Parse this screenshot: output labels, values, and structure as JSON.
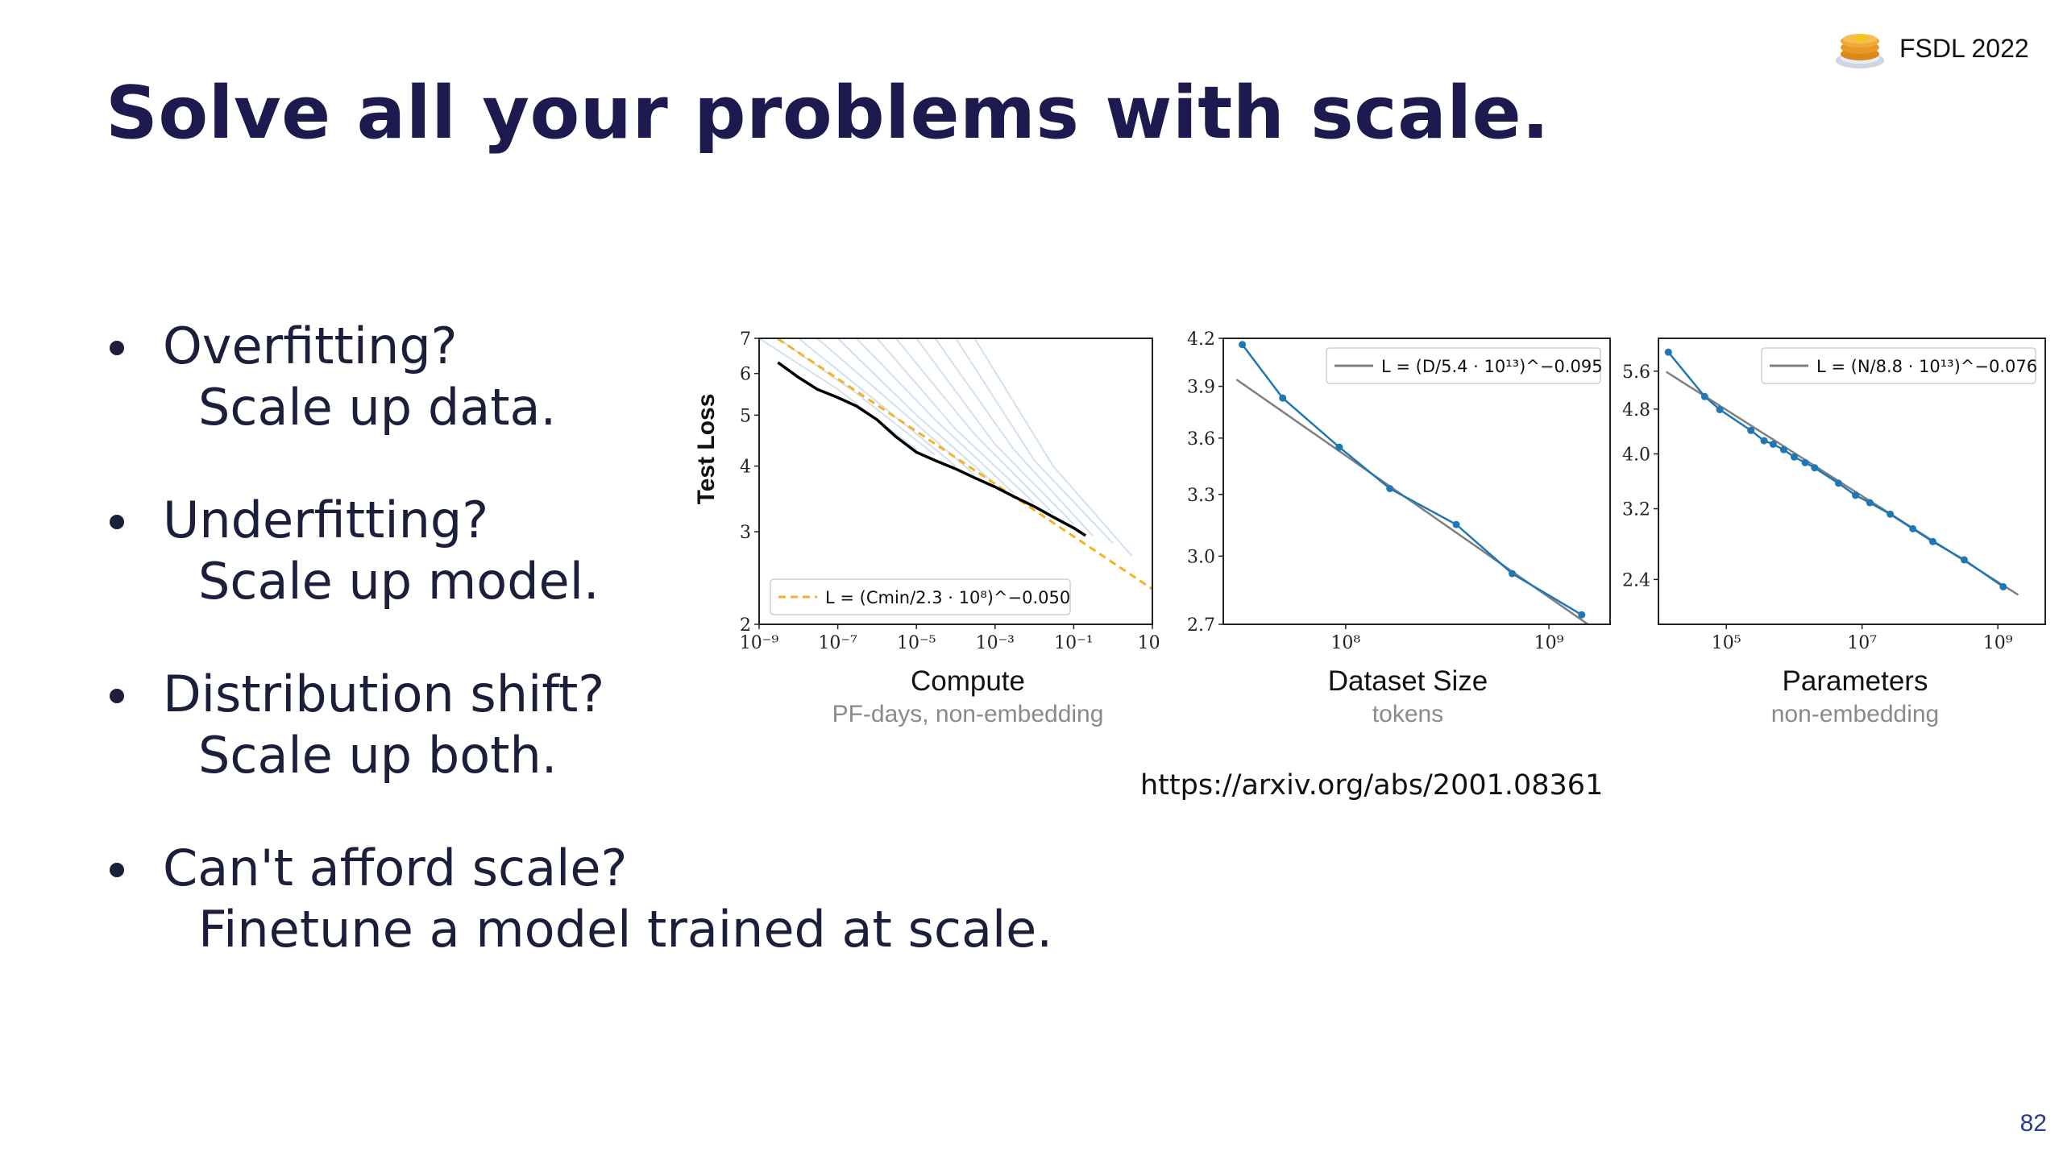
{
  "slide": {
    "title": "Solve all your problems with scale.",
    "brand": "FSDL 2022",
    "page_number": "82",
    "source_url": "https://arxiv.org/abs/2001.08361",
    "bullets": [
      {
        "question": "Overfitting?",
        "answer": "Scale up data."
      },
      {
        "question": "Underfitting?",
        "answer": "Scale up model."
      },
      {
        "question": "Distribution shift?",
        "answer": "Scale up both."
      },
      {
        "question": "Can't afford scale?",
        "answer": "Finetune a model trained at scale."
      }
    ]
  },
  "colors": {
    "title": "#1c1a4e",
    "fit_line": "#f5b324",
    "point": "#1f77b4",
    "curve": "#a9c8e6",
    "trend": "#7f7f7f"
  },
  "chart_data": [
    {
      "type": "line",
      "title": "Compute",
      "subtitle": "PF-days, non-embedding",
      "ylabel": "Test Loss",
      "xscale": "log",
      "yscale": "log",
      "xlim": [
        1e-09,
        10
      ],
      "ylim": [
        2,
        7
      ],
      "xticks": [
        1e-09,
        1e-07,
        1e-05,
        0.001,
        0.1,
        10
      ],
      "xtick_labels": [
        "10⁻⁹",
        "10⁻⁷",
        "10⁻⁵",
        "10⁻³",
        "10⁻¹",
        "10¹"
      ],
      "yticks": [
        2,
        3,
        4,
        5,
        6,
        7
      ],
      "ytick_labels": [
        "2",
        "3",
        "4",
        "5",
        "6",
        "7"
      ],
      "legend": {
        "text": "L = (Cmin/2.3 · 10⁸)^−0.050",
        "placement": "lower-left"
      },
      "fit": {
        "coef": 230000000.0,
        "exponent": -0.05,
        "x": [
          3e-09,
          10
        ]
      },
      "frontier": {
        "x": [
          3e-09,
          1e-08,
          3e-08,
          1e-07,
          3e-07,
          1e-06,
          3e-06,
          1e-05,
          3e-05,
          0.0001,
          0.0003,
          0.001,
          0.003,
          0.01,
          0.03,
          0.1,
          0.2
        ],
        "y": [
          6.3,
          5.9,
          5.6,
          5.4,
          5.2,
          4.9,
          4.55,
          4.25,
          4.1,
          3.95,
          3.8,
          3.65,
          3.5,
          3.35,
          3.2,
          3.05,
          2.95
        ]
      },
      "training_curves": [
        {
          "x": [
            1e-09,
            1e-07,
            1e-05
          ],
          "y": [
            7,
            5.6,
            4.3
          ]
        },
        {
          "x": [
            3e-09,
            3e-07,
            3e-05
          ],
          "y": [
            7,
            5.5,
            4.2
          ]
        },
        {
          "x": [
            1e-08,
            1e-06,
            0.0001
          ],
          "y": [
            7,
            5.3,
            4.0
          ]
        },
        {
          "x": [
            3e-08,
            3e-06,
            0.0003
          ],
          "y": [
            7,
            5.2,
            3.85
          ]
        },
        {
          "x": [
            1e-07,
            1e-05,
            0.001
          ],
          "y": [
            7,
            5.0,
            3.7
          ]
        },
        {
          "x": [
            3e-07,
            3e-05,
            0.003
          ],
          "y": [
            7,
            4.9,
            3.55
          ]
        },
        {
          "x": [
            1e-06,
            0.0001,
            0.01
          ],
          "y": [
            7,
            4.7,
            3.4
          ]
        },
        {
          "x": [
            3e-06,
            0.0003,
            0.03
          ],
          "y": [
            7,
            4.6,
            3.25
          ]
        },
        {
          "x": [
            1e-05,
            0.001,
            0.1
          ],
          "y": [
            7,
            4.4,
            3.1
          ]
        },
        {
          "x": [
            3e-05,
            0.003,
            0.3
          ],
          "y": [
            7,
            4.3,
            2.95
          ]
        },
        {
          "x": [
            0.0001,
            0.01,
            1
          ],
          "y": [
            7,
            4.1,
            2.85
          ]
        },
        {
          "x": [
            0.0003,
            0.03,
            3
          ],
          "y": [
            7,
            4.0,
            2.7
          ]
        }
      ]
    },
    {
      "type": "line",
      "title": "Dataset Size",
      "subtitle": "tokens",
      "xscale": "log",
      "yscale": "log",
      "xlim": [
        25000000.0,
        2000000000.0
      ],
      "ylim": [
        2.7,
        4.2
      ],
      "xticks": [
        100000000.0,
        1000000000.0
      ],
      "xtick_labels": [
        "10⁸",
        "10⁹"
      ],
      "yticks": [
        2.7,
        3.0,
        3.3,
        3.6,
        3.9,
        4.2
      ],
      "ytick_labels": [
        "2.7",
        "3.0",
        "3.3",
        "3.6",
        "3.9",
        "4.2"
      ],
      "legend": {
        "text": "L = (D/5.4 · 10¹³)^−0.095",
        "placement": "top-right"
      },
      "fit": {
        "coef": 54000000000000.0,
        "exponent": -0.095,
        "x": [
          29000000.0,
          1600000000.0
        ]
      },
      "points": {
        "x": [
          31000000.0,
          49000000.0,
          93000000.0,
          165000000.0,
          350000000.0,
          660000000.0,
          1450000000.0
        ],
        "y": [
          4.16,
          3.83,
          3.55,
          3.33,
          3.15,
          2.92,
          2.74
        ]
      }
    },
    {
      "type": "line",
      "title": "Parameters",
      "subtitle": "non-embedding",
      "xscale": "log",
      "yscale": "log",
      "xlim": [
        10000.0,
        5000000000.0
      ],
      "ylim": [
        2.0,
        6.4
      ],
      "xticks": [
        100000.0,
        10000000.0,
        1000000000.0
      ],
      "xtick_labels": [
        "10⁵",
        "10⁷",
        "10⁹"
      ],
      "yticks": [
        2.4,
        3.2,
        4.0,
        4.8,
        5.6
      ],
      "ytick_labels": [
        "2.4",
        "3.2",
        "4.0",
        "4.8",
        "5.6"
      ],
      "legend": {
        "text": "L = (N/8.8 · 10¹³)^−0.076",
        "placement": "top-right"
      },
      "fit": {
        "coef": 88000000000000.0,
        "exponent": -0.076,
        "x": [
          13000.0,
          2000000000.0
        ]
      },
      "points": {
        "x": [
          14000.0,
          48000.0,
          80000.0,
          230000.0,
          360000.0,
          490000.0,
          700000.0,
          1000000.0,
          1450000.0,
          2000000.0,
          4500000.0,
          8000000.0,
          13000000.0,
          26000000.0,
          56000000.0,
          110000000.0,
          320000000.0,
          1200000000.0
        ],
        "y": [
          6.05,
          5.05,
          4.79,
          4.4,
          4.22,
          4.16,
          4.07,
          3.95,
          3.86,
          3.78,
          3.55,
          3.38,
          3.28,
          3.13,
          2.95,
          2.8,
          2.6,
          2.33
        ]
      }
    }
  ]
}
